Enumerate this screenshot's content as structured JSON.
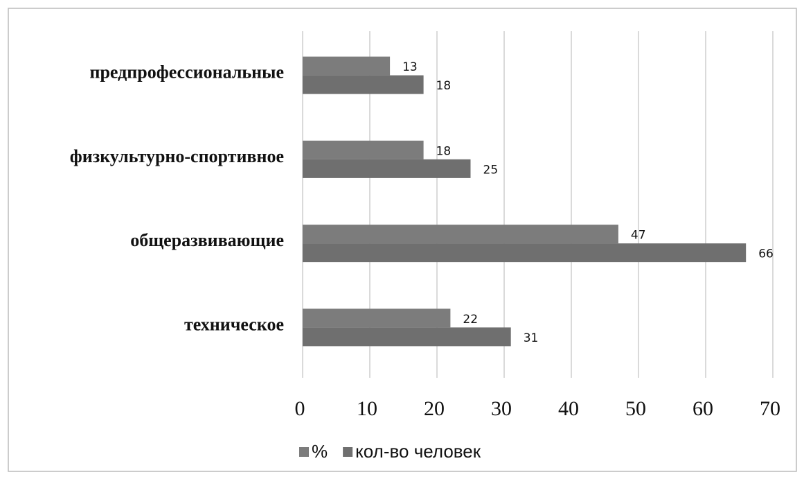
{
  "chart_data": {
    "type": "bar",
    "orientation": "horizontal",
    "categories": [
      "предпрофессиональные",
      "физкультурно-спортивное",
      "общеразвивающие",
      "техническое"
    ],
    "series": [
      {
        "name": "%",
        "color": "#7c7c7c",
        "values": [
          13,
          18,
          47,
          22
        ]
      },
      {
        "name": "кол-во человек",
        "color": "#6f6f6f",
        "values": [
          18,
          25,
          66,
          31
        ]
      }
    ],
    "xlim": [
      0,
      70
    ],
    "xticks": [
      0,
      10,
      20,
      30,
      40,
      50,
      60,
      70
    ],
    "grid": true,
    "legend": "bottom"
  }
}
